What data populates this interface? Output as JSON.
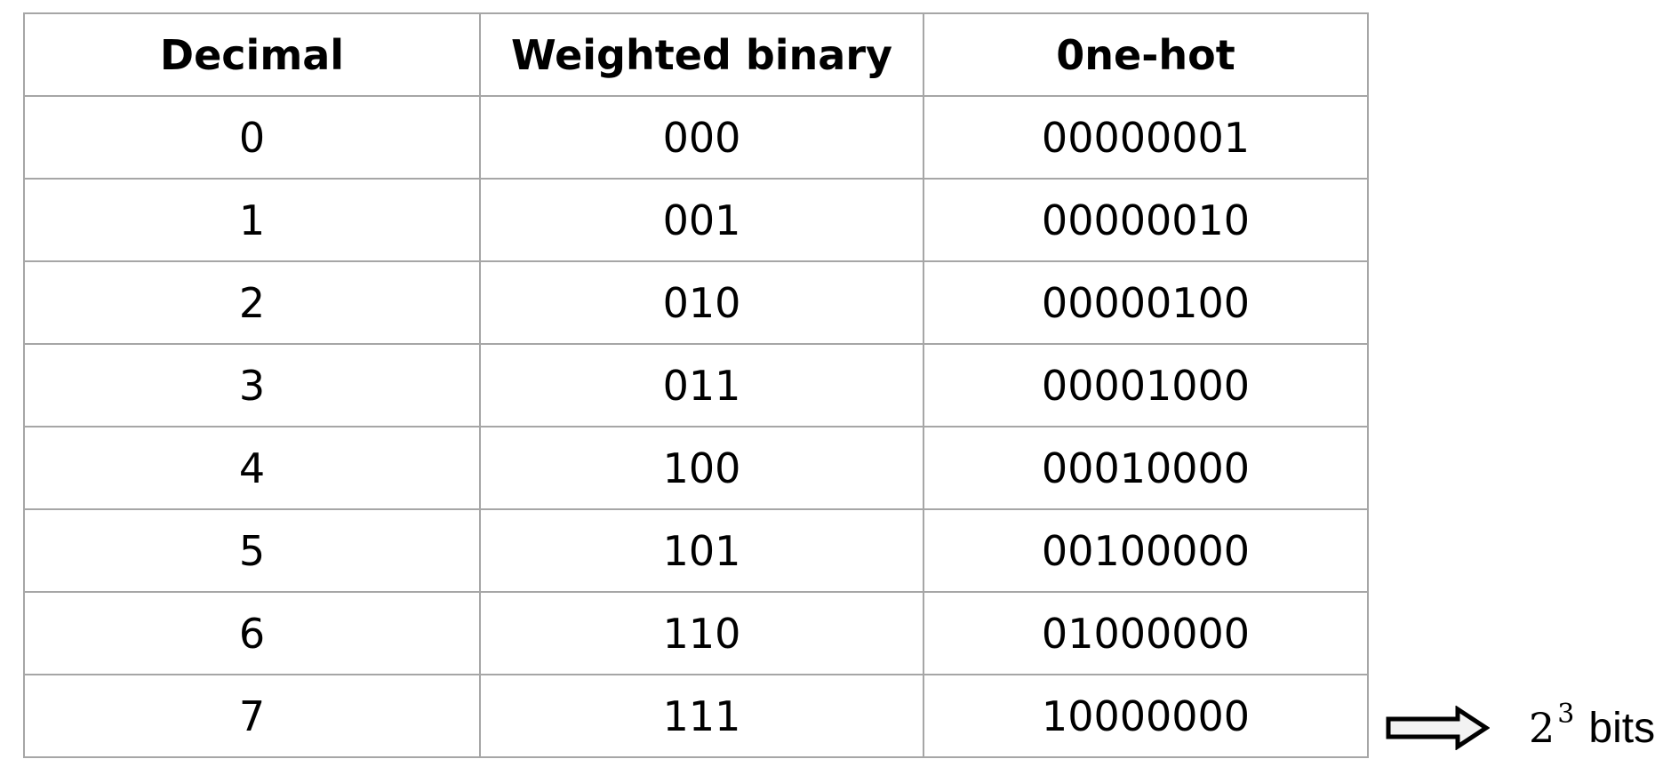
{
  "table": {
    "headers": [
      "Decimal",
      "Weighted binary",
      "0ne-hot"
    ],
    "rows": [
      [
        "0",
        "000",
        "00000001"
      ],
      [
        "1",
        "001",
        "00000010"
      ],
      [
        "2",
        "010",
        "00000100"
      ],
      [
        "3",
        "011",
        "00001000"
      ],
      [
        "4",
        "100",
        "00010000"
      ],
      [
        "5",
        "101",
        "00100000"
      ],
      [
        "6",
        "110",
        "01000000"
      ],
      [
        "7",
        "111",
        "10000000"
      ]
    ]
  },
  "annotation": {
    "arrow_icon": "double-arrow-right-icon",
    "base": "2",
    "exponent": "3",
    "unit": "bits"
  }
}
